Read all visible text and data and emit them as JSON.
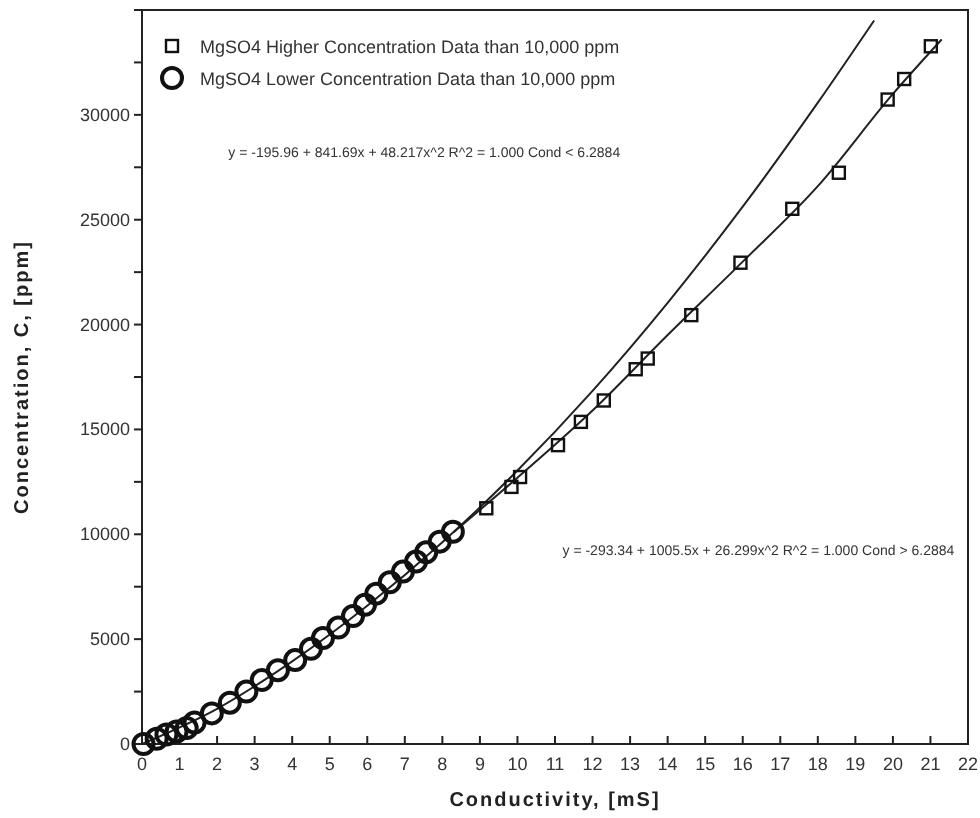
{
  "chart_data": {
    "type": "scatter",
    "xlabel": "Conductivity,  [mS]",
    "ylabel": "Concentration,  C,  [ppm]",
    "xlim": [
      0,
      22
    ],
    "xticks": [
      0,
      1,
      2,
      3,
      4,
      5,
      6,
      7,
      8,
      9,
      10,
      11,
      12,
      13,
      14,
      15,
      16,
      17,
      18,
      19,
      20,
      21,
      22
    ],
    "ylim": [
      0,
      35000
    ],
    "yticks": [
      0,
      {
        "value": 2500,
        "label": null
      },
      5000,
      {
        "value": 7500,
        "label": null
      },
      10000,
      {
        "value": 12500,
        "label": null
      },
      15000,
      {
        "value": 17500,
        "label": null
      },
      20000,
      {
        "value": 22500,
        "label": null
      },
      25000,
      {
        "value": 27500,
        "label": null
      },
      30000,
      {
        "value": 32500,
        "label": null
      },
      {
        "value": 35000,
        "label": null
      }
    ],
    "grid": false,
    "legend": "top left",
    "annotations": [
      "y = -195.96 + 841.69x + 48.217x^2    R^2 = 1.000     Cond < 6.2884",
      "y = -293.34 + 1005.5x + 26.299x^2    R^2 = 1.000     Cond > 6.2884"
    ],
    "series": [
      {
        "type": "line",
        "color": "#222222",
        "marker": "none",
        "x": [
          0,
          2,
          4,
          6,
          8,
          10,
          12,
          14,
          16,
          18,
          19.5
        ],
        "values": [
          0,
          1680,
          3940,
          6590,
          9620,
          13040,
          16840,
          21040,
          25620,
          30580,
          34500
        ]
      },
      {
        "type": "line",
        "color": "#222222",
        "marker": "none",
        "x": [
          8.3,
          10,
          12,
          14,
          16,
          18,
          20,
          21.3
        ],
        "values": [
          10100,
          12700,
          15900,
          19500,
          23000,
          26600,
          31000,
          33600
        ]
      },
      {
        "name": "MgSO4 Higher Concentration Data than 10,000 ppm",
        "color": "#111111",
        "marker": "square",
        "x": [
          9.17,
          9.84,
          10.07,
          11.08,
          11.69,
          12.3,
          13.15,
          13.47,
          14.63,
          15.94,
          17.32,
          18.56,
          19.86,
          20.3,
          21.01
        ],
        "values": [
          11240,
          12260,
          12730,
          14250,
          15360,
          16380,
          17870,
          18380,
          20450,
          22950,
          25520,
          27240,
          30730,
          31710,
          33270
        ]
      },
      {
        "name": "MgSO4 Lower Concentration Data than 10,000 ppm",
        "color": "#111111",
        "marker": "circle",
        "x": [
          0.04,
          0.39,
          0.65,
          0.92,
          1.19,
          1.4,
          1.86,
          2.34,
          2.78,
          3.19,
          3.62,
          4.08,
          4.5,
          4.82,
          5.23,
          5.62,
          5.94,
          6.24,
          6.6,
          6.95,
          7.3,
          7.57,
          7.93,
          8.28
        ],
        "values": [
          0,
          250,
          450,
          600,
          760,
          1020,
          1460,
          1970,
          2500,
          3050,
          3520,
          4000,
          4540,
          5050,
          5550,
          6100,
          6640,
          7170,
          7710,
          8220,
          8700,
          9140,
          9650,
          10120
        ]
      }
    ]
  }
}
